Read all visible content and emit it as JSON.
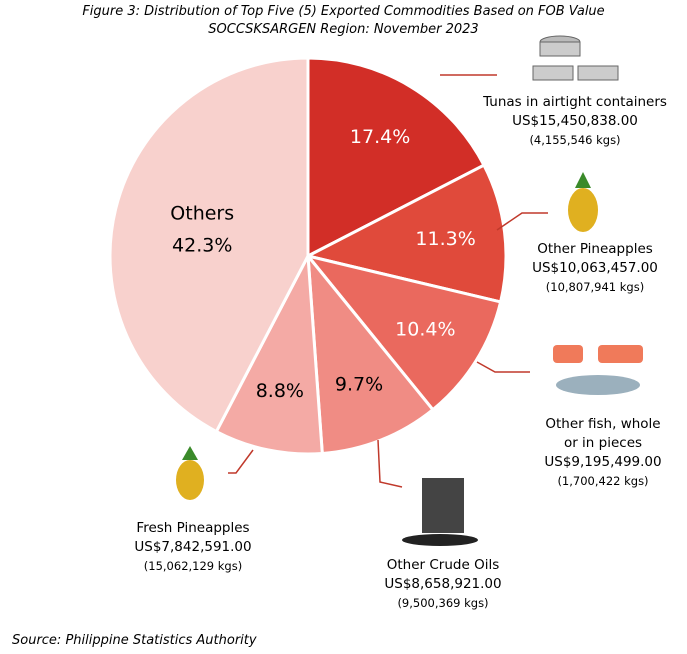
{
  "chart_data": {
    "type": "pie",
    "title": "Figure 3: Distribution of Top Five (5) Exported Commodities Based on FOB Value",
    "subtitle": "SOCCSKSARGEN Region: November 2023",
    "categories": [
      "Tunas in airtight containers",
      "Other Pineapples",
      "Other fish, whole or in pieces",
      "Other Crude Oils",
      "Fresh Pineapples",
      "Others"
    ],
    "values": [
      17.4,
      11.3,
      10.4,
      9.7,
      8.8,
      42.3
    ],
    "value_labels": [
      "17.4%",
      "11.3%",
      "10.4%",
      "9.7%",
      "8.8%",
      "42.3%"
    ],
    "fob_values": [
      "US$15,450,838.00",
      "US$10,063,457.00",
      "US$9,195,499.00",
      "US$8,658,921.00",
      "US$7,842,591.00",
      null
    ],
    "weights": [
      "(4,155,546 kgs)",
      "(10,807,941 kgs)",
      "(1,700,422 kgs)",
      "(9,500,369 kgs)",
      "(15,062,129 kgs)",
      null
    ],
    "colors": [
      "#d22e27",
      "#e04a3b",
      "#ea695e",
      "#f08c84",
      "#f4aaa5",
      "#f8d1cd"
    ],
    "label_colors": [
      "#ffffff",
      "#ffffff",
      "#ffffff",
      "#000000",
      "#000000",
      "#000000"
    ],
    "source": "Source: Philippine Statistics Authority"
  }
}
